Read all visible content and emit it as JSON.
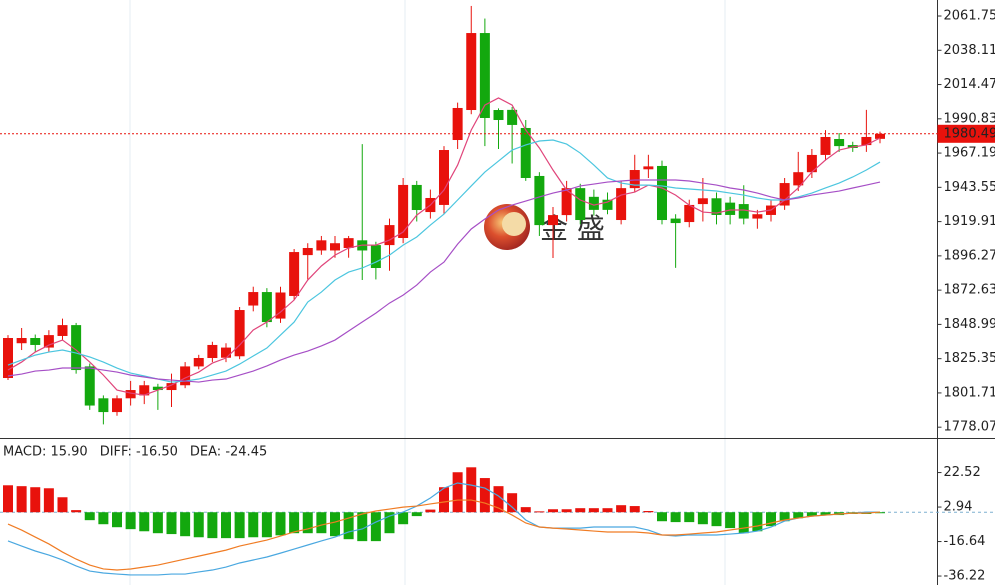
{
  "watermark": "金 盛",
  "chart_data": [
    {
      "type": "candlestick",
      "open": [
        1812,
        1836,
        1839.6,
        1833,
        1841,
        1848.5,
        1820,
        1798,
        1788.5,
        1798,
        1800,
        1806,
        1803.7,
        1807,
        1820,
        1825.8,
        1826,
        1827,
        1862,
        1871.3,
        1853,
        1868.6,
        1896.8,
        1900,
        1900,
        1901.7,
        1907,
        1903.7,
        1903.7,
        1908.6,
        1945.2,
        1926.5,
        1931.4,
        1976.2,
        1996.9,
        2050,
        1996.9,
        1997,
        1984.5,
        1951.4,
        1917.5,
        1924.4,
        1943,
        1937,
        1935,
        1921,
        1943,
        1956,
        1958.3,
        1922,
        1919.6,
        1932,
        1936,
        1933,
        1932,
        1922,
        1924.5,
        1931,
        1944.9,
        1954,
        1965.9,
        1976.9,
        1972.7,
        1972.7,
        1977
      ],
      "high": [
        1841.6,
        1846.5,
        1842,
        1845,
        1853,
        1850,
        1822,
        1800,
        1800,
        1810,
        1810,
        1808,
        1815,
        1823,
        1828,
        1837,
        1836,
        1861,
        1875,
        1874,
        1875,
        1901,
        1905,
        1910,
        1910,
        1910,
        1973.4,
        1906,
        1922,
        1950,
        1948,
        1942,
        1972,
        2002,
        2068.7,
        2060,
        1998,
        1999,
        1990,
        1954,
        1930,
        1948,
        1946,
        1942,
        1940,
        1948,
        1966,
        1966,
        1962,
        1925,
        1935,
        1950,
        1940,
        1937,
        1945,
        1928,
        1935,
        1950,
        1968,
        1970,
        1983,
        1981,
        1975,
        1997,
        1982
      ],
      "low": [
        1810.6,
        1831.3,
        1830,
        1830,
        1838,
        1815,
        1790,
        1780,
        1786,
        1793,
        1794,
        1790,
        1792,
        1805,
        1818,
        1823,
        1823,
        1825,
        1858,
        1847,
        1850,
        1866,
        1880,
        1897,
        1895,
        1895,
        1879.6,
        1880,
        1886,
        1905,
        1920,
        1922,
        1925,
        1970,
        1994,
        1972,
        1970,
        1960,
        1948,
        1910,
        1894.8,
        1920,
        1918,
        1924,
        1925,
        1918,
        1940,
        1950,
        1918,
        1888,
        1916,
        1920,
        1918,
        1918,
        1918,
        1915,
        1920,
        1928,
        1941,
        1950,
        1962,
        1968,
        1968,
        1968,
        1974
      ],
      "close": [
        1839.6,
        1839.6,
        1834.8,
        1841.6,
        1848.5,
        1817.5,
        1793,
        1788.5,
        1798,
        1803.7,
        1807,
        1803.7,
        1808.5,
        1820,
        1825.8,
        1834.8,
        1833,
        1858.9,
        1871.3,
        1850.6,
        1871,
        1898.9,
        1901.7,
        1907,
        1905,
        1908.5,
        1900,
        1887.9,
        1917.5,
        1945.2,
        1927.9,
        1936.2,
        1969.3,
        1998.3,
        2050,
        1991.4,
        1990,
        1986.6,
        1950,
        1917.5,
        1924.4,
        1943,
        1921,
        1928,
        1928,
        1943,
        1955.5,
        1958,
        1921,
        1918.9,
        1931.4,
        1936,
        1924.5,
        1924.5,
        1922,
        1925,
        1931,
        1946.5,
        1954,
        1965.9,
        1978.3,
        1972,
        1970.7,
        1978.3,
        1980.49
      ],
      "up_color": "#e8120c",
      "down_color": "#13a80e",
      "series": [
        {
          "color": "#e0457b",
          "values": [
            1817.5,
            1823.0,
            1829.9,
            1834.7,
            1838.2,
            1831.3,
            1823.0,
            1814.0,
            1803.7,
            1801.6,
            1800.2,
            1803.7,
            1807.1,
            1812.0,
            1816.1,
            1822.3,
            1825.8,
            1834.7,
            1845.1,
            1850.6,
            1857.5,
            1865.8,
            1879.6,
            1889.3,
            1896.8,
            1901.7,
            1903.7,
            1903.7,
            1907.2,
            1912.7,
            1924.4,
            1931.3,
            1941.7,
            1958.9,
            1983.1,
            2000.3,
            2005.2,
            2000.3,
            1983.1,
            1970.7,
            1955.5,
            1941.7,
            1934.8,
            1931.3,
            1933.4,
            1938.2,
            1940.3,
            1945.1,
            1943.1,
            1938.2,
            1931.3,
            1926.5,
            1925.8,
            1927.9,
            1927.9,
            1926.5,
            1927.9,
            1934.8,
            1943.1,
            1954.1,
            1962.4,
            1969.3,
            1971.4,
            1972.8,
            1977.6
          ]
        },
        {
          "color": "#4cc6df",
          "values": [
            1820.9,
            1824.4,
            1827.8,
            1829.9,
            1831.3,
            1829.2,
            1826.5,
            1823.0,
            1818.9,
            1815.4,
            1813.4,
            1811.3,
            1809.2,
            1809.9,
            1811.3,
            1814.0,
            1816.8,
            1821.6,
            1827.2,
            1832.7,
            1841.6,
            1850.6,
            1864.4,
            1871.3,
            1879.6,
            1885.1,
            1887.9,
            1892.0,
            1896.8,
            1903.7,
            1909.3,
            1917.5,
            1925.1,
            1934.8,
            1944.5,
            1954.1,
            1961.7,
            1969.3,
            1972.8,
            1975.5,
            1976.2,
            1973.4,
            1967.2,
            1958.9,
            1950.0,
            1946.5,
            1945.1,
            1945.1,
            1944.5,
            1943.1,
            1942.4,
            1941.7,
            1941.0,
            1939.6,
            1938.2,
            1936.2,
            1934.8,
            1934.8,
            1936.9,
            1939.6,
            1943.1,
            1946.5,
            1950.7,
            1955.5,
            1961.0
          ]
        },
        {
          "color": "#a64fc6",
          "values": [
            1813.4,
            1814.7,
            1816.8,
            1817.5,
            1818.9,
            1818.9,
            1818.9,
            1817.5,
            1816.1,
            1814.0,
            1812.7,
            1811.3,
            1810.6,
            1809.9,
            1809.2,
            1810.6,
            1811.3,
            1814.0,
            1816.8,
            1820.3,
            1824.4,
            1827.8,
            1830.6,
            1834.1,
            1838.2,
            1844.4,
            1850.6,
            1856.8,
            1863.7,
            1869.2,
            1876.1,
            1885.1,
            1892.0,
            1904.4,
            1914.8,
            1921.7,
            1927.9,
            1931.3,
            1934.1,
            1936.9,
            1939.6,
            1941.7,
            1944.5,
            1945.8,
            1947.2,
            1947.9,
            1948.6,
            1948.6,
            1948.6,
            1948.6,
            1947.9,
            1946.5,
            1945.1,
            1943.1,
            1941.7,
            1939.6,
            1936.9,
            1934.8,
            1936.2,
            1938.2,
            1939.6,
            1941.0,
            1943.1,
            1945.1,
            1947.2
          ]
        }
      ],
      "last_price": 1980.49,
      "last_color": "#e8120c",
      "ylim": [
        1771.3,
        2072.8
      ],
      "yticks": [
        2061.75,
        2038.11,
        2014.47,
        1990.83,
        1967.19,
        1943.55,
        1919.91,
        1896.27,
        1872.63,
        1848.99,
        1825.35,
        1801.71,
        1778.07
      ]
    },
    {
      "type": "macd",
      "legend": [
        {
          "text": "MACD: 15.90",
          "color": "#e8120c"
        },
        {
          "text": "DIFF: -16.50",
          "color": "#4aa8e0"
        },
        {
          "text": "DEA: -24.45",
          "color": "#f07c24"
        }
      ],
      "values": [
        15.3,
        14.8,
        14.2,
        13.6,
        8.5,
        1.2,
        -4.5,
        -6.8,
        -8.5,
        -9.6,
        -10.8,
        -11.9,
        -12.4,
        -13.6,
        -14.2,
        -14.7,
        -14.7,
        -14.7,
        -14.2,
        -14.2,
        -13.1,
        -11.9,
        -11.9,
        -11.9,
        -13.6,
        -15.3,
        -16.4,
        -16.4,
        -11.9,
        -6.8,
        -2.2,
        1.5,
        14.2,
        22.7,
        25.5,
        19.4,
        14.8,
        10.8,
        2.9,
        0.5,
        1.7,
        1.7,
        2.3,
        2.3,
        2.3,
        4.0,
        3.5,
        0.7,
        -5.1,
        -5.6,
        -5.6,
        -6.8,
        -7.9,
        -9.0,
        -11.9,
        -10.8,
        -7.9,
        -5.1,
        -3.4,
        -2.2,
        -1.6,
        -1.6,
        -1.0,
        -1.0,
        -0.5
      ],
      "up_color": "#e8120c",
      "down_color": "#13a80e",
      "series": [
        {
          "color": "#4aa8e0",
          "values": [
            -16.3,
            -19.2,
            -22.0,
            -24.3,
            -27.1,
            -30.5,
            -33.4,
            -34.5,
            -35.1,
            -35.6,
            -35.6,
            -35.6,
            -35.1,
            -35.1,
            -33.9,
            -32.8,
            -31.1,
            -28.8,
            -27.1,
            -25.4,
            -23.2,
            -20.9,
            -18.6,
            -16.3,
            -14.1,
            -11.2,
            -9.5,
            -5.6,
            -2.2,
            0.1,
            3.5,
            8.1,
            13.7,
            16.6,
            15.4,
            13.7,
            9.2,
            2.9,
            -4.4,
            -8.4,
            -9.0,
            -9.0,
            -9.0,
            -8.4,
            -8.4,
            -8.4,
            -8.4,
            -10.1,
            -12.9,
            -13.5,
            -12.9,
            -12.9,
            -12.9,
            -12.4,
            -11.8,
            -10.7,
            -8.4,
            -5.0,
            -3.3,
            -2.2,
            -1.6,
            -1.0,
            -0.5,
            0.1,
            0.1
          ]
        },
        {
          "color": "#f07c24",
          "values": [
            -6.7,
            -10.1,
            -14.1,
            -18.0,
            -22.6,
            -26.6,
            -30.0,
            -32.2,
            -32.8,
            -32.2,
            -31.1,
            -30.0,
            -28.3,
            -26.6,
            -24.9,
            -23.2,
            -21.5,
            -19.2,
            -17.5,
            -15.8,
            -13.5,
            -11.2,
            -9.5,
            -7.3,
            -5.6,
            -3.3,
            -1.0,
            0.7,
            1.8,
            2.9,
            3.5,
            4.7,
            5.8,
            6.9,
            6.9,
            5.2,
            2.4,
            -1.6,
            -6.1,
            -8.4,
            -9.0,
            -9.5,
            -10.1,
            -10.7,
            -11.2,
            -11.2,
            -11.2,
            -11.8,
            -12.9,
            -12.9,
            -12.4,
            -11.8,
            -11.2,
            -10.1,
            -9.0,
            -7.8,
            -6.1,
            -4.4,
            -3.3,
            -2.2,
            -1.6,
            -1.0,
            -0.5,
            -0.5,
            0.1
          ]
        }
      ],
      "zero_line": true,
      "ylim": [
        -41.3,
        41.0
      ],
      "yticks": [
        22.52,
        2.94,
        -16.64,
        -36.22
      ]
    }
  ]
}
